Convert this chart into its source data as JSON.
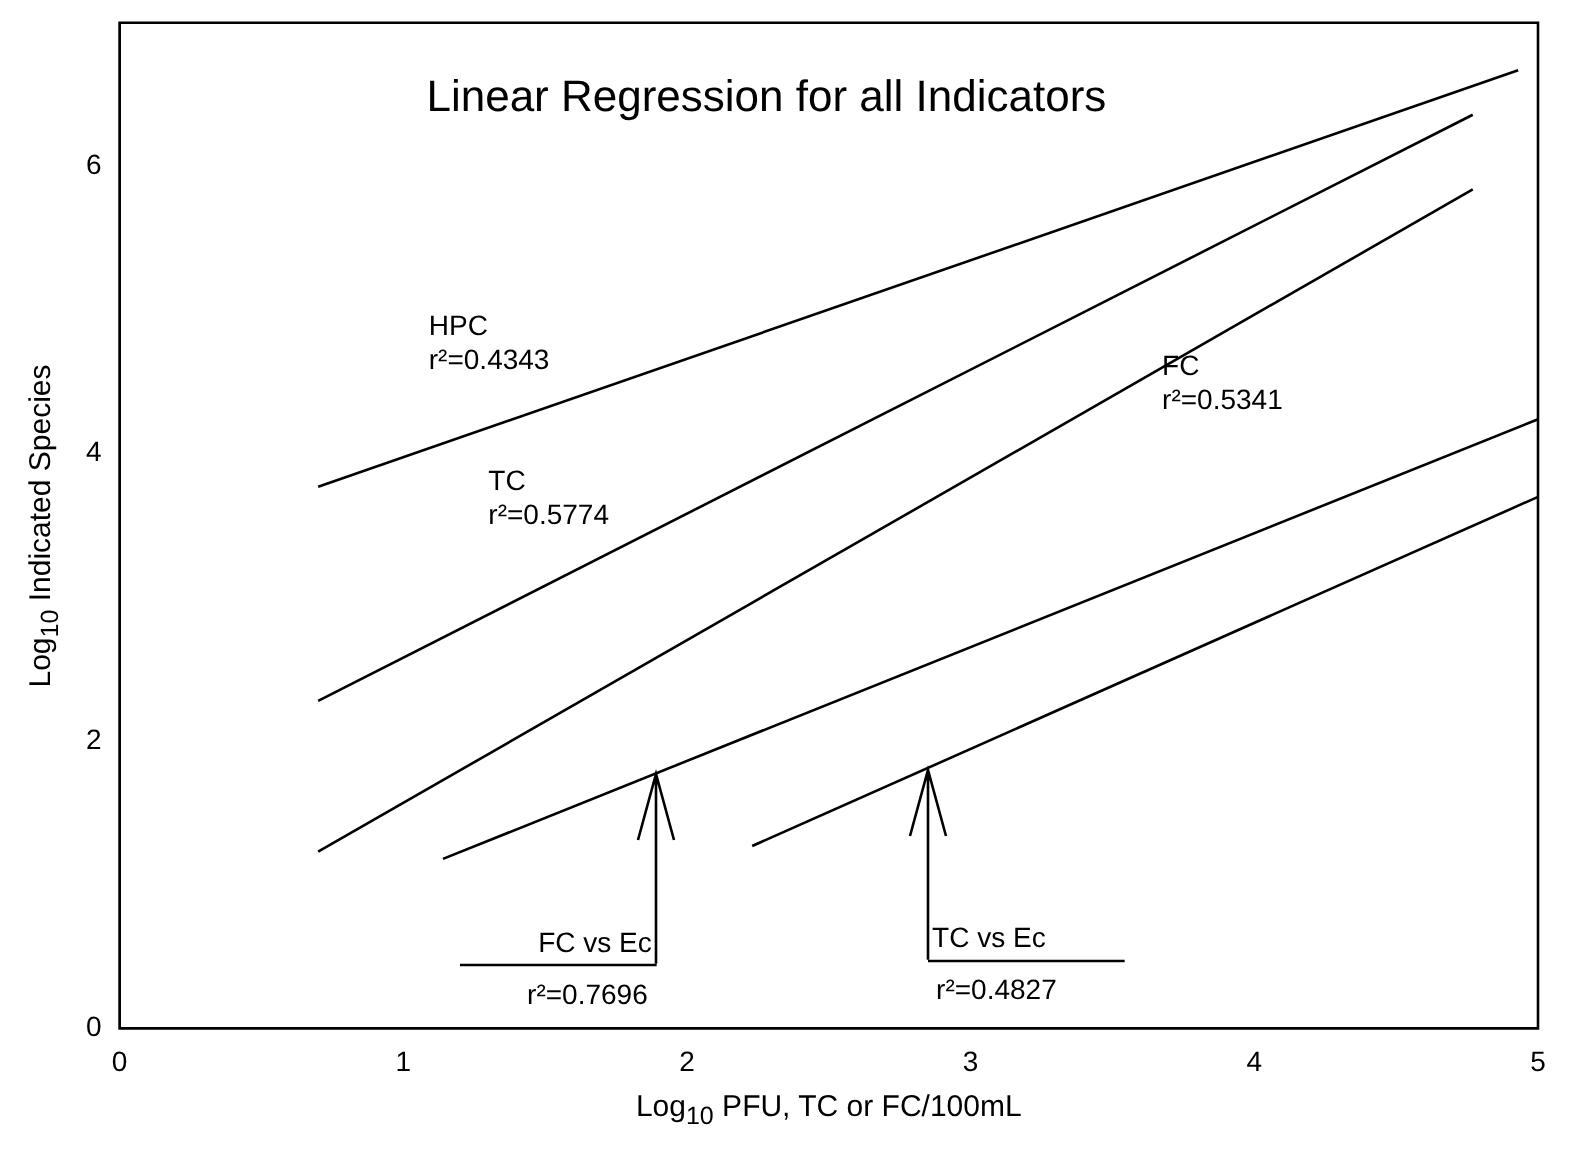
{
  "chart_data": {
    "type": "line",
    "title": "Linear Regression for all Indicators",
    "xlabel": "Log$_{10}$ PFU, TC or FC/100mL",
    "ylabel": "Log$_{10}$ Indicated Species",
    "series": [
      {
        "color": "#000000",
        "x": [
          0.7,
          4.93
        ],
        "values": [
          3.77,
          6.67
        ]
      },
      {
        "color": "#000000",
        "x": [
          0.7,
          4.77
        ],
        "values": [
          2.28,
          6.36
        ]
      },
      {
        "color": "#000000",
        "x": [
          0.7,
          4.77
        ],
        "values": [
          1.23,
          5.84
        ]
      },
      {
        "color": "#000000",
        "x": [
          1.14,
          5
        ],
        "values": [
          1.18,
          4.24
        ]
      },
      {
        "color": "#000000",
        "x": [
          2.23,
          5
        ],
        "values": [
          1.27,
          3.7
        ]
      }
    ],
    "annotations": [
      "HPC\nr²=0.4343",
      "TC\nr²=0.5774",
      "FC\nr²=0.5341",
      {
        "text": "FC vs Ec\nr²=0.7696",
        "x": 1.89,
        "y": 1.77
      },
      {
        "text": "TC vs Ec\nr²=0.4827",
        "x": 2.85,
        "y": 1.8
      }
    ],
    "xlim": [
      0,
      5
    ],
    "xticks": [
      0,
      1,
      2,
      3,
      4,
      5
    ],
    "ylim": [
      0,
      7
    ],
    "yticks": [
      0,
      2,
      4,
      6
    ],
    "grid": false,
    "legend": false,
    "marker": "none",
    "line_style": "solid"
  }
}
